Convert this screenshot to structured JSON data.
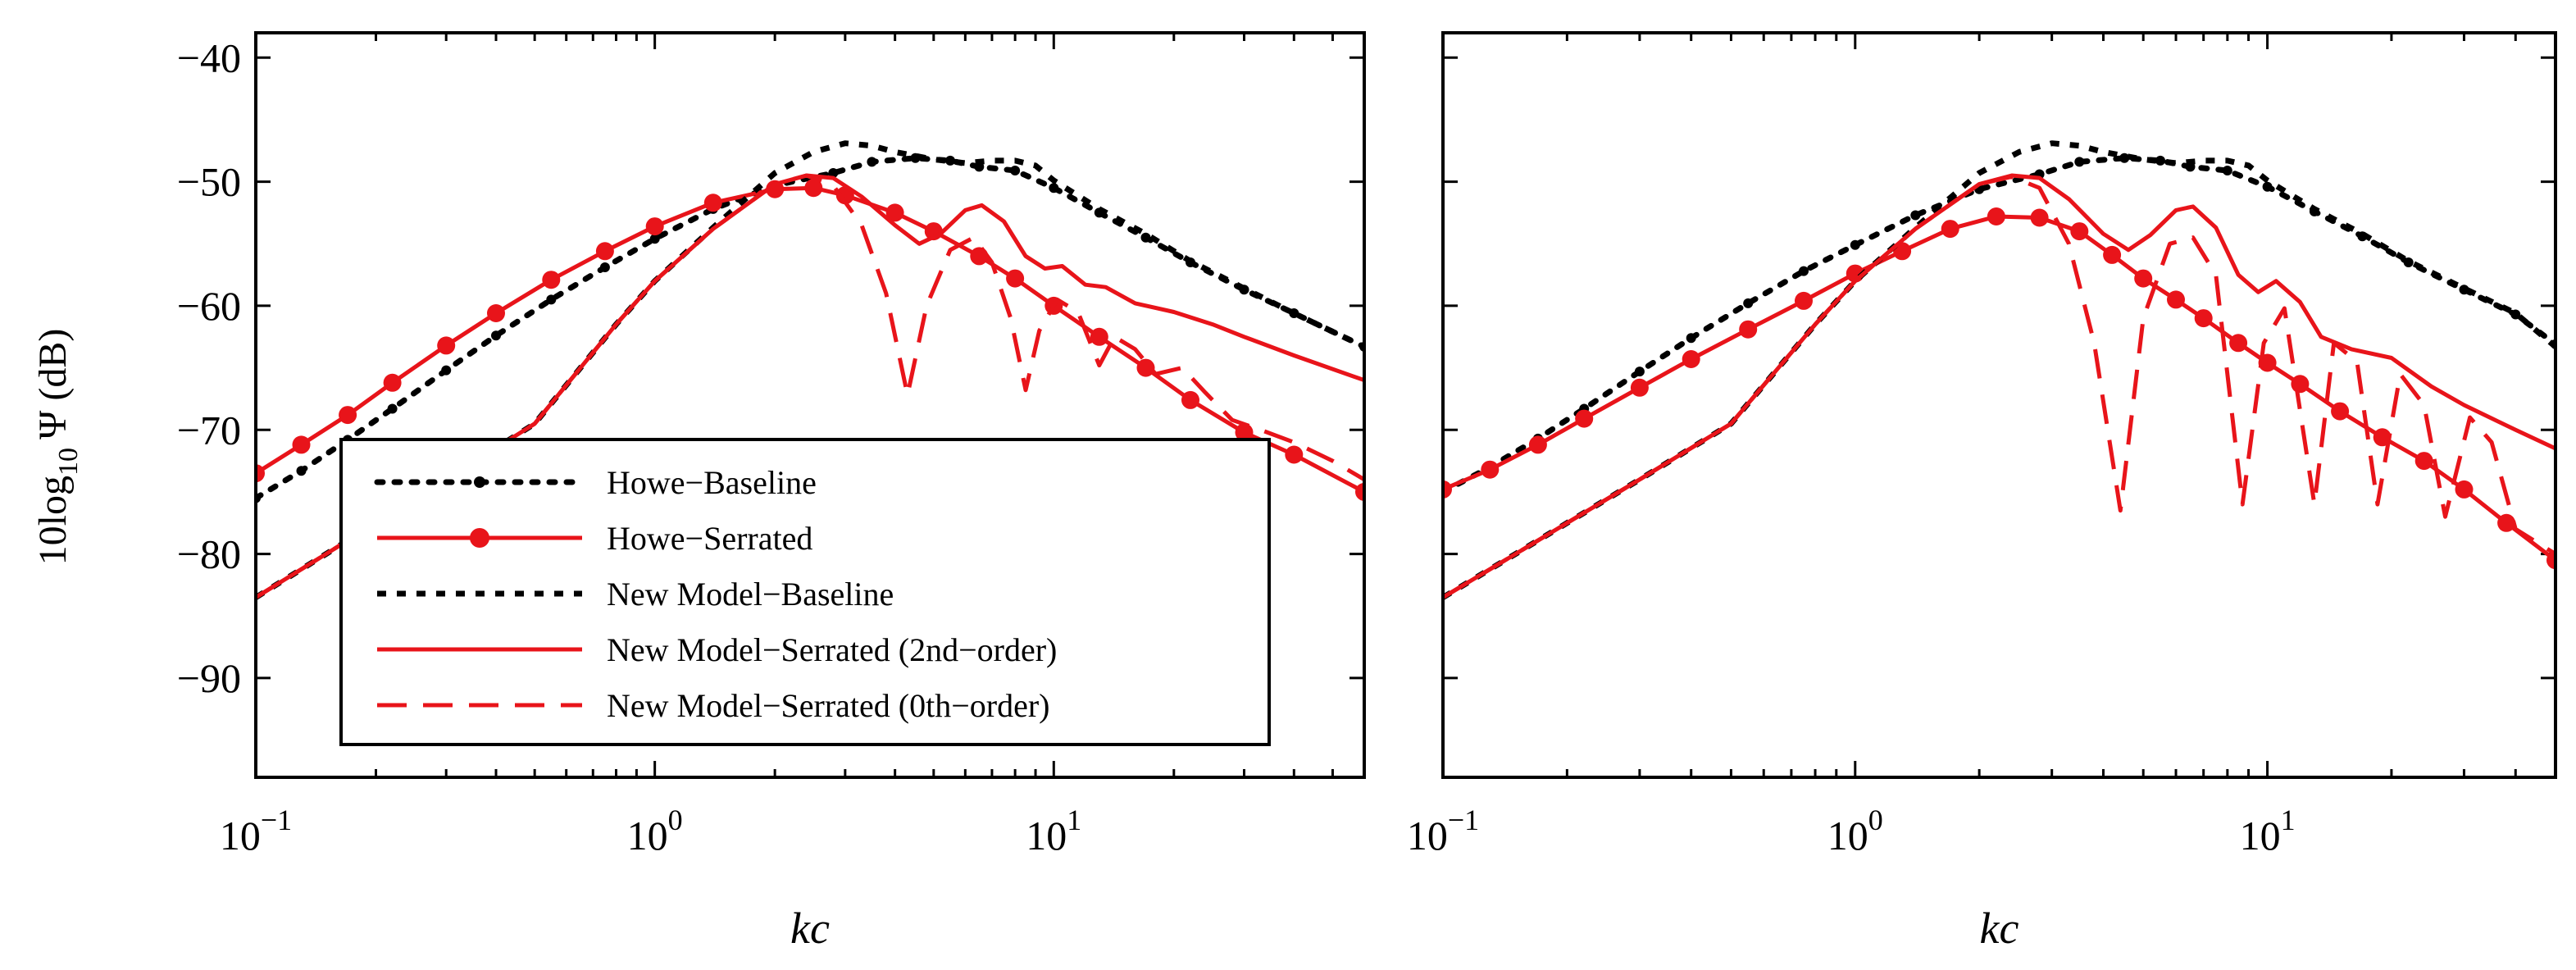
{
  "chart_data": {
    "type": "line",
    "x_scale": "log",
    "xlim": [
      0.1,
      60
    ],
    "ylim": [
      -98,
      -38
    ],
    "xlabel": "kc",
    "ylabel": "10log10 Ψ (dB)",
    "ylabel_parts": {
      "prefix": "10log",
      "sub": "10",
      "psi": "Ψ",
      "unit": "(dB)"
    },
    "y_ticks": [
      -40,
      -50,
      -60,
      -70,
      -80,
      -90
    ],
    "y_tick_labels": [
      "−40",
      "−50",
      "−60",
      "−70",
      "−80",
      "−90"
    ],
    "x_ticks": [
      {
        "value": 0.1,
        "base": "10",
        "exp": "−1"
      },
      {
        "value": 1,
        "base": "10",
        "exp": "0"
      },
      {
        "value": 10,
        "base": "10",
        "exp": "1"
      }
    ],
    "legend": [
      {
        "label": "Howe−Baseline",
        "color": "#000000",
        "style": "dotted-marker"
      },
      {
        "label": "Howe−Serrated",
        "color": "#e8141a",
        "style": "solid-marker"
      },
      {
        "label": "New Model−Baseline",
        "color": "#000000",
        "style": "dotted"
      },
      {
        "label": "New Model−Serrated (2nd−order)",
        "color": "#e8141a",
        "style": "solid"
      },
      {
        "label": "New Model−Serrated (0th−order)",
        "color": "#e8141a",
        "style": "dashed"
      }
    ],
    "panels": [
      {
        "name": "left",
        "series": [
          {
            "name": "Howe−Baseline",
            "x": [
              0.1,
              0.13,
              0.17,
              0.22,
              0.3,
              0.4,
              0.55,
              0.75,
              1,
              1.4,
              2,
              2.8,
              3.5,
              4.5,
              5.5,
              6.5,
              8,
              10,
              13,
              17,
              22,
              30,
              40,
              60
            ],
            "y": [
              -75.5,
              -73.3,
              -70.8,
              -68.3,
              -65.2,
              -62.4,
              -59.5,
              -56.9,
              -54.6,
              -52.2,
              -50.3,
              -49.3,
              -48.4,
              -48.1,
              -48.3,
              -48.8,
              -49.1,
              -50.5,
              -52.5,
              -54.5,
              -56.5,
              -58.7,
              -60.6,
              -63.3
            ]
          },
          {
            "name": "Howe−Serrated",
            "x": [
              0.1,
              0.13,
              0.17,
              0.22,
              0.3,
              0.4,
              0.55,
              0.75,
              1,
              1.4,
              2,
              2.5,
              3,
              4,
              5,
              6.5,
              8,
              10,
              13,
              17,
              22,
              30,
              40,
              60
            ],
            "y": [
              -73.5,
              -71.2,
              -68.8,
              -66.2,
              -63.2,
              -60.6,
              -57.9,
              -55.6,
              -53.6,
              -51.7,
              -50.6,
              -50.5,
              -51.1,
              -52.5,
              -54,
              -56,
              -57.8,
              -60,
              -62.5,
              -65,
              -67.6,
              -70.2,
              -72,
              -75
            ]
          },
          {
            "name": "New Model−Baseline",
            "x": [
              0.1,
              0.15,
              0.2,
              0.3,
              0.5,
              0.8,
              1,
              1.4,
              2,
              2.5,
              3,
              3.5,
              4,
              5,
              6,
              7,
              8,
              9,
              10,
              13,
              17,
              22,
              30,
              40,
              60
            ],
            "y": [
              -83.5,
              -80,
              -77.5,
              -74,
              -69.5,
              -61.5,
              -58,
              -53.7,
              -49.3,
              -47.6,
              -46.9,
              -47.1,
              -47.6,
              -48.2,
              -48.5,
              -48.3,
              -48.3,
              -48.7,
              -49.9,
              -52.2,
              -54.2,
              -56.4,
              -58.6,
              -60.6,
              -63.3
            ]
          },
          {
            "name": "New Model−Serrated (2nd−order)",
            "x": [
              0.1,
              0.15,
              0.2,
              0.3,
              0.5,
              0.8,
              1,
              1.4,
              2,
              2.4,
              2.8,
              3.3,
              4,
              4.6,
              5.2,
              6,
              6.6,
              7.5,
              8.5,
              9.5,
              10.5,
              12,
              13.5,
              16,
              20,
              25,
              30,
              40,
              60
            ],
            "y": [
              -83.5,
              -80,
              -77.5,
              -74,
              -69.5,
              -61.5,
              -58,
              -53.8,
              -50.2,
              -49.5,
              -49.7,
              -51.2,
              -53.5,
              -55,
              -54.2,
              -52.3,
              -51.9,
              -53.2,
              -56,
              -57,
              -56.8,
              -58.3,
              -58.5,
              -59.8,
              -60.5,
              -61.5,
              -62.5,
              -64,
              -66
            ]
          },
          {
            "name": "New Model−Serrated (0th−order)",
            "x": [
              0.1,
              0.15,
              0.2,
              0.3,
              0.5,
              0.8,
              1,
              1.4,
              2,
              2.4,
              2.8,
              3.3,
              3.8,
              4.3,
              4.8,
              5.5,
              6.3,
              7,
              7.8,
              8.5,
              9.2,
              10.2,
              11.5,
              13,
              14.2,
              16,
              18,
              21,
              24,
              28,
              33,
              40,
              50,
              60
            ],
            "y": [
              -83.5,
              -80,
              -77.5,
              -74,
              -69.5,
              -61.5,
              -58,
              -53.8,
              -50.2,
              -49.5,
              -50.3,
              -53.5,
              -59,
              -67.2,
              -60,
              -55.5,
              -54.5,
              -56.5,
              -61,
              -66.8,
              -62,
              -59.5,
              -60.5,
              -64.8,
              -62.5,
              -63.5,
              -65.5,
              -65,
              -67,
              -69.2,
              -70,
              -71,
              -72.5,
              -74
            ]
          }
        ]
      },
      {
        "name": "right",
        "series": [
          {
            "name": "Howe−Baseline",
            "x": [
              0.1,
              0.13,
              0.17,
              0.22,
              0.3,
              0.4,
              0.55,
              0.75,
              1,
              1.4,
              2,
              2.8,
              3.5,
              4.5,
              5.5,
              6.5,
              8,
              10,
              13,
              17,
              22,
              30,
              40,
              50
            ],
            "y": [
              -75,
              -73,
              -70.7,
              -68.3,
              -65.3,
              -62.6,
              -59.8,
              -57.2,
              -55.1,
              -52.7,
              -50.6,
              -49.4,
              -48.4,
              -48.1,
              -48.3,
              -48.8,
              -49.1,
              -50.4,
              -52.4,
              -54.4,
              -56.5,
              -58.7,
              -60.7,
              -63.1
            ]
          },
          {
            "name": "Howe−Serrated",
            "x": [
              0.1,
              0.13,
              0.17,
              0.22,
              0.3,
              0.4,
              0.55,
              0.75,
              1,
              1.3,
              1.7,
              2.2,
              2.8,
              3.5,
              4.2,
              5,
              6,
              7,
              8.5,
              10,
              12,
              15,
              19,
              24,
              30,
              38,
              50
            ],
            "y": [
              -74.8,
              -73.2,
              -71.2,
              -69.1,
              -66.6,
              -64.3,
              -61.9,
              -59.6,
              -57.4,
              -55.6,
              -53.8,
              -52.8,
              -52.9,
              -54,
              -55.9,
              -57.8,
              -59.5,
              -61,
              -63,
              -64.6,
              -66.3,
              -68.5,
              -70.6,
              -72.5,
              -74.8,
              -77.5,
              -80.5
            ]
          },
          {
            "name": "New Model−Baseline",
            "x": [
              0.1,
              0.15,
              0.2,
              0.3,
              0.5,
              0.8,
              1,
              1.4,
              2,
              2.5,
              3,
              3.5,
              4,
              5,
              6,
              7,
              8,
              9,
              10,
              13,
              17,
              22,
              30,
              40,
              50
            ],
            "y": [
              -83.5,
              -80,
              -77.5,
              -74,
              -69.5,
              -61.5,
              -58,
              -53.7,
              -49.3,
              -47.6,
              -46.9,
              -47.1,
              -47.6,
              -48.2,
              -48.5,
              -48.3,
              -48.3,
              -48.7,
              -49.9,
              -52.2,
              -54.2,
              -56.4,
              -58.6,
              -60.6,
              -63.3
            ]
          },
          {
            "name": "New Model−Serrated (2nd−order)",
            "x": [
              0.1,
              0.15,
              0.2,
              0.3,
              0.5,
              0.8,
              1,
              1.4,
              2,
              2.4,
              2.8,
              3.3,
              4,
              4.6,
              5.2,
              6,
              6.6,
              7.5,
              8.5,
              9.5,
              10.5,
              12,
              13.5,
              16,
              20,
              25,
              30,
              40,
              50
            ],
            "y": [
              -83.5,
              -80,
              -77.5,
              -74,
              -69.5,
              -61.5,
              -58,
              -53.8,
              -50.2,
              -49.5,
              -49.7,
              -51.4,
              -54.2,
              -55.5,
              -54.3,
              -52.3,
              -52,
              -53.7,
              -57.5,
              -58.9,
              -58,
              -59.7,
              -62.5,
              -63.5,
              -64.2,
              -66.5,
              -68,
              -70,
              -71.5
            ]
          },
          {
            "name": "New Model−Serrated (0th−order)",
            "x": [
              0.1,
              0.15,
              0.2,
              0.3,
              0.5,
              0.8,
              1,
              1.4,
              2,
              2.4,
              2.8,
              3.3,
              3.8,
              4.4,
              5,
              5.8,
              6.6,
              7.5,
              8.7,
              9.8,
              11,
              13,
              14.5,
              16.5,
              18.5,
              21,
              24,
              27,
              31,
              35,
              40,
              50
            ],
            "y": [
              -83.5,
              -80,
              -77.5,
              -74,
              -69.5,
              -61.5,
              -58,
              -53.8,
              -50.2,
              -49.6,
              -50.5,
              -55,
              -63,
              -76.5,
              -61,
              -55,
              -54.5,
              -57.5,
              -76,
              -63,
              -60.2,
              -76,
              -63,
              -64.5,
              -76,
              -65.5,
              -68,
              -77,
              -69,
              -71,
              -78,
              -80
            ]
          }
        ]
      }
    ]
  }
}
